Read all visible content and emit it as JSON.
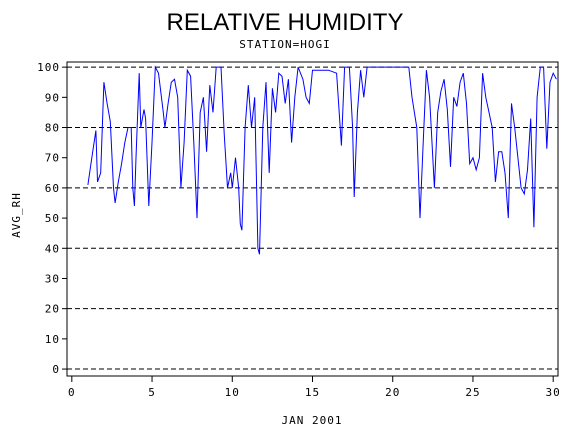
{
  "chart_data": {
    "type": "line",
    "title": "RELATIVE HUMIDITY",
    "subtitle": "STATION=HOGI",
    "x_label": "JAN 2001",
    "y_label": "AVG_RH",
    "x": [
      1.0,
      1.3,
      1.5,
      1.6,
      1.8,
      2.0,
      2.2,
      2.4,
      2.6,
      2.7,
      2.9,
      3.1,
      3.3,
      3.5,
      3.7,
      3.8,
      3.9,
      4.0,
      4.2,
      4.3,
      4.5,
      4.6,
      4.8,
      5.0,
      5.2,
      5.4,
      5.7,
      5.8,
      6.0,
      6.2,
      6.4,
      6.6,
      6.8,
      7.0,
      7.2,
      7.4,
      7.6,
      7.8,
      8.0,
      8.2,
      8.4,
      8.6,
      8.8,
      9.0,
      9.3,
      9.5,
      9.7,
      9.9,
      10.0,
      10.2,
      10.4,
      10.5,
      10.6,
      10.8,
      11.0,
      11.2,
      11.4,
      11.6,
      11.7,
      11.9,
      12.1,
      12.3,
      12.5,
      12.7,
      12.9,
      13.1,
      13.3,
      13.5,
      13.7,
      13.9,
      14.1,
      14.4,
      14.6,
      14.8,
      15.0,
      16.0,
      16.5,
      16.8,
      17.0,
      17.3,
      17.5,
      17.6,
      17.8,
      18.0,
      18.2,
      18.4,
      19.0,
      21.0,
      21.2,
      21.5,
      21.7,
      21.9,
      22.1,
      22.3,
      22.6,
      22.8,
      23.0,
      23.2,
      23.4,
      23.6,
      23.8,
      24.0,
      24.2,
      24.4,
      24.6,
      24.8,
      25.0,
      25.2,
      25.4,
      25.6,
      25.8,
      26.0,
      26.2,
      26.4,
      26.6,
      26.8,
      27.0,
      27.2,
      27.4,
      27.6,
      27.8,
      28.0,
      28.2,
      28.4,
      28.6,
      28.8,
      29.0,
      29.2,
      29.4,
      29.6,
      29.8,
      30.0,
      30.2
    ],
    "series": [
      {
        "name": "AVG_RH",
        "color": "#0000ff",
        "values": [
          61,
          72,
          79,
          62,
          65,
          95,
          88,
          82,
          60,
          55,
          62,
          68,
          75,
          80,
          80,
          60,
          54,
          70,
          98,
          80,
          86,
          83,
          54,
          75,
          100,
          98,
          85,
          80,
          88,
          95,
          96,
          90,
          60,
          75,
          99,
          97,
          75,
          50,
          85,
          90,
          72,
          94,
          85,
          100,
          100,
          78,
          60,
          65,
          60,
          70,
          60,
          48,
          46,
          80,
          94,
          80,
          90,
          40,
          38,
          80,
          95,
          65,
          93,
          85,
          98,
          97,
          88,
          96,
          75,
          90,
          100,
          96,
          90,
          88,
          99,
          99,
          98,
          74,
          100,
          100,
          80,
          57,
          85,
          99,
          90,
          100,
          100,
          100,
          90,
          80,
          50,
          75,
          99,
          90,
          60,
          85,
          92,
          96,
          86,
          67,
          90,
          87,
          95,
          98,
          88,
          68,
          70,
          66,
          70,
          98,
          90,
          85,
          80,
          62,
          72,
          72,
          65,
          50,
          88,
          80,
          70,
          60,
          58,
          66,
          83,
          47,
          90,
          100,
          100,
          73,
          95,
          98,
          96
        ]
      }
    ],
    "xlim": [
      -0.3,
      30.3
    ],
    "ylim": [
      -2.3,
      101.7
    ],
    "xticks": [
      0,
      5,
      10,
      15,
      20,
      25,
      30
    ],
    "yticks": [
      0,
      10,
      20,
      30,
      40,
      50,
      60,
      70,
      80,
      90,
      100
    ],
    "grid_lines": [
      0,
      20,
      40,
      60,
      80,
      100
    ]
  }
}
